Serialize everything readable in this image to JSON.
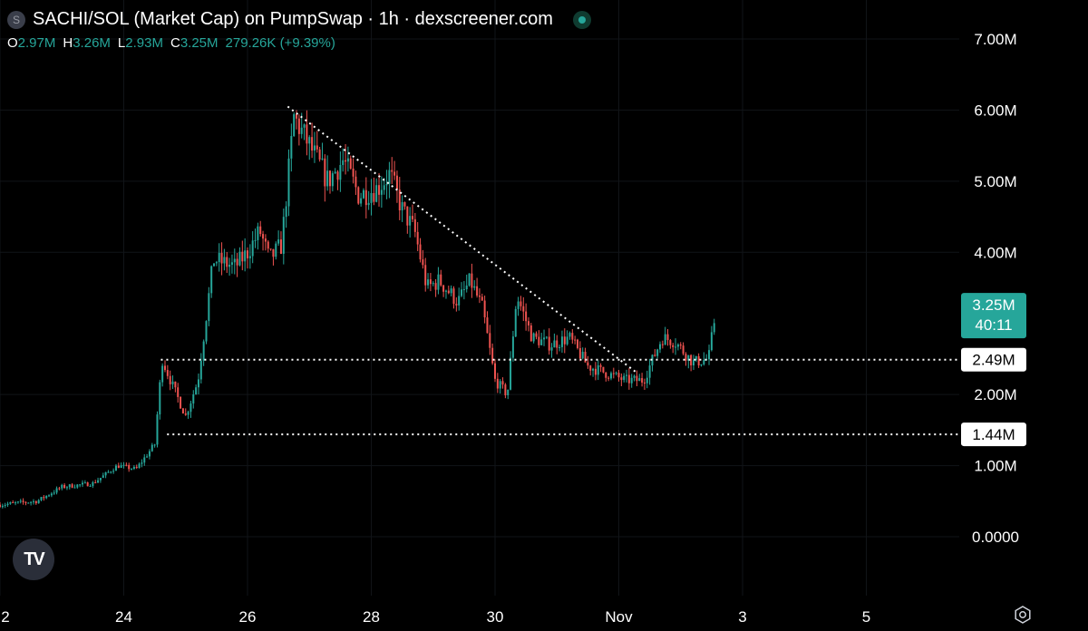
{
  "header": {
    "symbol_icon": "S",
    "title": "SACHI/SOL (Market Cap) on PumpSwap · 1h · dexscreener.com",
    "ohlc": [
      {
        "key": "O",
        "value": "2.97M"
      },
      {
        "key": "H",
        "value": "3.26M"
      },
      {
        "key": "L",
        "value": "2.93M"
      },
      {
        "key": "C",
        "value": "3.25M"
      }
    ],
    "change": "279.26K (+9.39%)"
  },
  "logo_text": "TV",
  "colors": {
    "up": "#26a69a",
    "down": "#ef5350",
    "background": "#000000",
    "text": "#d1d4dc"
  },
  "chart_data": {
    "type": "candlestick",
    "title": "SACHI/SOL (Market Cap) on PumpSwap · 1h · dexscreener.com",
    "x_ticks": [
      {
        "label": "2",
        "day": 22
      },
      {
        "label": "24",
        "day": 24
      },
      {
        "label": "26",
        "day": 26
      },
      {
        "label": "28",
        "day": 28
      },
      {
        "label": "30",
        "day": 30
      },
      {
        "label": "Nov",
        "day": 32
      },
      {
        "label": "3",
        "day": 34
      },
      {
        "label": "5",
        "day": 36
      }
    ],
    "y_ticks": [
      {
        "label": "7.00M",
        "value": 7.0
      },
      {
        "label": "6.00M",
        "value": 6.0
      },
      {
        "label": "5.00M",
        "value": 5.0
      },
      {
        "label": "4.00M",
        "value": 4.0
      },
      {
        "label": "2.00M",
        "value": 2.0
      },
      {
        "label": "1.00M",
        "value": 1.0
      },
      {
        "label": "0.0000",
        "value": 0.0
      }
    ],
    "ylim": [
      -0.75,
      7.5
    ],
    "xlim": [
      22,
      38.5
    ],
    "price_anchors": [
      [
        22.0,
        0.45
      ],
      [
        22.6,
        0.5
      ],
      [
        23.0,
        0.7
      ],
      [
        23.5,
        0.75
      ],
      [
        23.9,
        1.0
      ],
      [
        24.2,
        0.95
      ],
      [
        24.5,
        1.3
      ],
      [
        24.62,
        2.5
      ],
      [
        24.8,
        2.1
      ],
      [
        25.0,
        1.7
      ],
      [
        25.2,
        2.2
      ],
      [
        25.45,
        3.9
      ],
      [
        25.8,
        3.8
      ],
      [
        26.0,
        4.0
      ],
      [
        26.2,
        4.3
      ],
      [
        26.35,
        3.9
      ],
      [
        26.55,
        4.1
      ],
      [
        26.75,
        5.9
      ],
      [
        27.0,
        5.5
      ],
      [
        27.3,
        5.0
      ],
      [
        27.55,
        5.3
      ],
      [
        27.8,
        4.8
      ],
      [
        28.1,
        4.9
      ],
      [
        28.3,
        5.1
      ],
      [
        28.5,
        4.6
      ],
      [
        28.7,
        4.3
      ],
      [
        28.9,
        3.5
      ],
      [
        29.1,
        3.6
      ],
      [
        29.4,
        3.3
      ],
      [
        29.6,
        3.6
      ],
      [
        29.8,
        3.2
      ],
      [
        30.0,
        2.2
      ],
      [
        30.2,
        2.0
      ],
      [
        30.35,
        3.4
      ],
      [
        30.6,
        2.8
      ],
      [
        30.9,
        2.7
      ],
      [
        31.2,
        2.8
      ],
      [
        31.5,
        2.4
      ],
      [
        31.8,
        2.3
      ],
      [
        32.1,
        2.2
      ],
      [
        32.4,
        2.2
      ],
      [
        32.7,
        2.8
      ],
      [
        32.9,
        2.75
      ],
      [
        33.2,
        2.45
      ],
      [
        33.45,
        2.5
      ],
      [
        33.58,
        3.25
      ]
    ],
    "horizontal_levels": [
      {
        "label": "2.49M",
        "value": 2.49,
        "from_day": 24.6
      },
      {
        "label": "1.44M",
        "value": 1.44,
        "from_day": 24.7
      }
    ],
    "trendline": {
      "from": [
        26.65,
        6.05
      ],
      "to": [
        32.3,
        2.3
      ]
    },
    "last_price": {
      "label": "3.25M",
      "countdown": "40:11",
      "value": 3.25
    }
  }
}
